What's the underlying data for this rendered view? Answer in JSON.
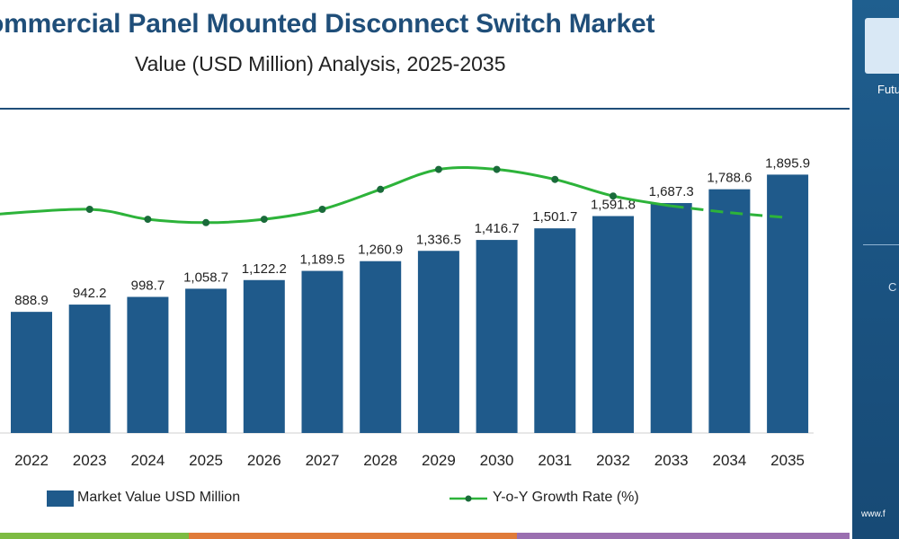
{
  "header": {
    "title": "ommercial Panel Mounted Disconnect Switch Market",
    "subtitle": "Value (USD Million) Analysis, 2025-2035"
  },
  "side_panel": {
    "logo_text": "Futu",
    "letter": "C",
    "website": "www.f"
  },
  "colors": {
    "bar": "#1f5a8b",
    "line": "#2db33a",
    "line_marker": "#1a6b3a",
    "title": "#1f4e79",
    "stripe": [
      "#7dbb42",
      "#e07b39",
      "#9a6fb0"
    ]
  },
  "chart_data": {
    "type": "bar",
    "categories": [
      "2022",
      "2023",
      "2024",
      "2025",
      "2026",
      "2027",
      "2028",
      "2029",
      "2030",
      "2031",
      "2032",
      "2033",
      "2034",
      "2035"
    ],
    "series": [
      {
        "name": "Market Value USD Million",
        "type": "bar",
        "values": [
          888.9,
          942.2,
          998.7,
          1058.7,
          1122.2,
          1189.5,
          1260.9,
          1336.5,
          1416.7,
          1501.7,
          1591.8,
          1687.3,
          1788.6,
          1895.9
        ],
        "labels": [
          "888.9",
          "942.2",
          "998.7",
          "1,058.7",
          "1,122.2",
          "1,189.5",
          "1,260.9",
          "1,336.5",
          "1,416.7",
          "1,501.7",
          "1,591.8",
          "1,687.3",
          "1,788.6",
          "1,895.9"
        ]
      },
      {
        "name": "Y-o-Y Growth Rate (%)",
        "type": "line",
        "values": [
          5.85,
          6.0,
          5.7,
          5.6,
          5.7,
          6.0,
          6.6,
          7.2,
          7.2,
          6.9,
          6.4,
          6.1,
          5.9,
          5.75
        ],
        "dashed_from_index": 11
      }
    ],
    "legend_position": "bottom",
    "grid": false
  }
}
